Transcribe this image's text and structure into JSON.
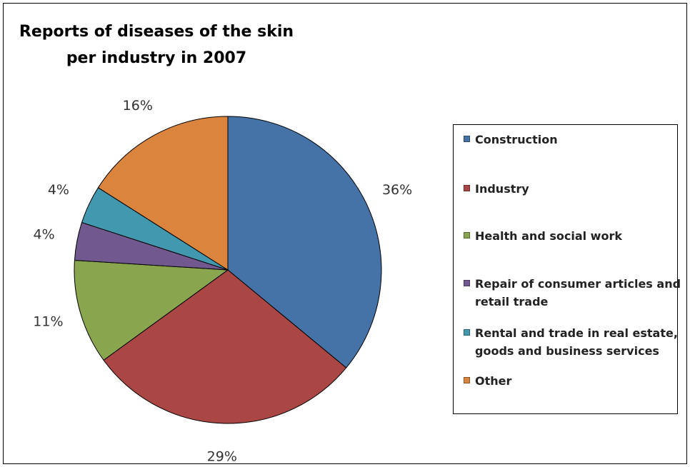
{
  "chart_data": {
    "type": "pie",
    "title": "Reports of diseases of the skin per industry in 2007",
    "title_lines": [
      "Reports of diseases of the skin",
      "per industry in 2007"
    ],
    "legend_position": "right",
    "slices": [
      {
        "name": "Construction",
        "value": 36,
        "label": "36%",
        "color": "#4572A7",
        "legend_lines": [
          "Construction"
        ]
      },
      {
        "name": "Industry",
        "value": 29,
        "label": "29%",
        "color": "#AA4643",
        "legend_lines": [
          "Industry"
        ]
      },
      {
        "name": "Health and social work",
        "value": 11,
        "label": "11%",
        "color": "#89A54E",
        "legend_lines": [
          "Health and social work"
        ]
      },
      {
        "name": "Repair of consumer articles and retail trade",
        "value": 4,
        "label": "4%",
        "color": "#71588F",
        "legend_lines": [
          "Repair of consumer articles and",
          "retail trade"
        ]
      },
      {
        "name": "Rental and trade in real estate, goods and business services",
        "value": 4,
        "label": "4%",
        "color": "#4198AF",
        "legend_lines": [
          "Rental and trade in real estate,",
          "goods and business services"
        ]
      },
      {
        "name": "Other",
        "value": 16,
        "label": "16%",
        "color": "#DB843D",
        "legend_lines": [
          "Other"
        ]
      }
    ]
  }
}
